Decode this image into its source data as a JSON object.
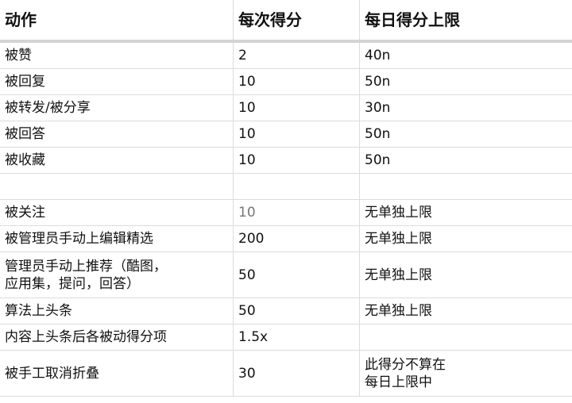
{
  "headers": [
    "动作",
    "每次得分",
    "每日得分上限"
  ],
  "rows": [
    {
      "action": "被赞",
      "score": "2",
      "limit": "40n"
    },
    {
      "action": "被回复",
      "score": "10",
      "limit": "50n"
    },
    {
      "action": "被转发/被分享",
      "score": "10",
      "limit": "30n"
    },
    {
      "action": "被回答",
      "score": "10",
      "limit": "50n"
    },
    {
      "action": "被收藏",
      "score": "10",
      "limit": "50n"
    },
    {
      "action": "",
      "score": "",
      "limit": ""
    },
    {
      "action": "被关注",
      "score": "10",
      "limit": "无单独上限"
    },
    {
      "action": "被管理员手动上编辑精选",
      "score": "200",
      "limit": "无单独上限"
    },
    {
      "action": "管理员手动上推荐（酷图，\n应用集，提问，回答）",
      "score": "50",
      "limit": "无单独上限"
    },
    {
      "action": "算法上头条",
      "score": "50",
      "limit": "无单独上限"
    },
    {
      "action": "内容上头条后各被动得分项",
      "score": "1.5x",
      "limit": ""
    },
    {
      "action": "被手工取消折叠",
      "score": "30",
      "limit": "此得分不算在\n每日上限中"
    }
  ]
}
